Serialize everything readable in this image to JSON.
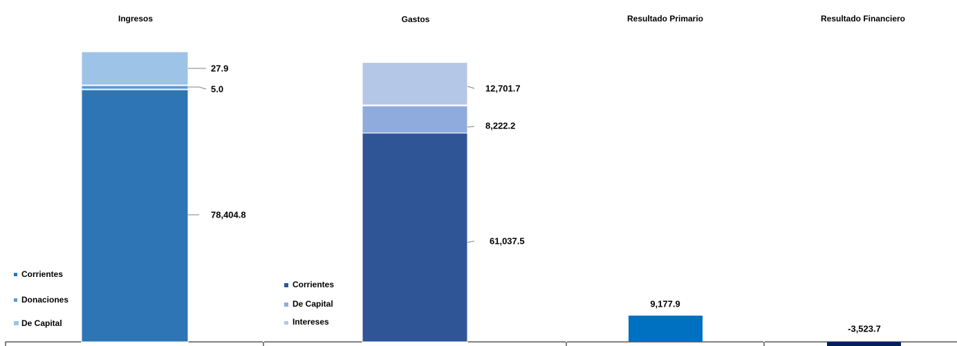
{
  "chart_data": [
    {
      "type": "bar",
      "stacked": true,
      "title": "Ingresos",
      "series": [
        {
          "name": "Corrientes",
          "value": 78404.8,
          "label": "78,404.8",
          "color": "#2E75B6"
        },
        {
          "name": "Donaciones",
          "value": 5.0,
          "label": "5.0",
          "color": "#5B9BD5"
        },
        {
          "name": "De Capital",
          "value": 27.9,
          "label": "27.9",
          "color": "#9DC3E6"
        }
      ],
      "legend": "bottom-left"
    },
    {
      "type": "bar",
      "stacked": true,
      "title": "Gastos",
      "series": [
        {
          "name": "Corrientes",
          "value": 61037.5,
          "label": "61,037.5",
          "color": "#2F5597"
        },
        {
          "name": "De Capital",
          "value": 8222.2,
          "label": "8,222.2",
          "color": "#8FAADC"
        },
        {
          "name": "Intereses",
          "value": 12701.7,
          "label": "12,701.7",
          "color": "#B4C7E7"
        }
      ],
      "legend": "bottom-left"
    },
    {
      "type": "bar",
      "title": "Resultado Primario",
      "series": [
        {
          "value": 9177.9,
          "label": "9,177.9",
          "color": "#0070C0"
        }
      ]
    },
    {
      "type": "bar",
      "title": "Resultado Financiero",
      "series": [
        {
          "value": -3523.7,
          "label": "-3,523.7",
          "color": "#002060"
        }
      ]
    }
  ]
}
